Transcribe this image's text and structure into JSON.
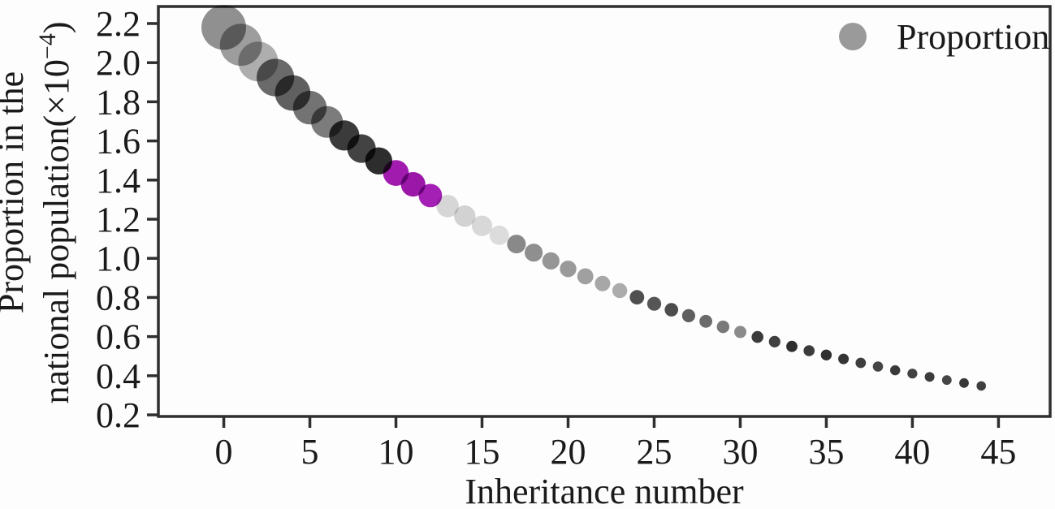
{
  "chart_data": {
    "type": "scatter",
    "title": "",
    "xlabel": "Inheritance number",
    "ylabel_line1": "Proportion in the",
    "ylabel_line2_main": "national population(×10",
    "ylabel_line2_sup": "−4",
    "ylabel_line2_close": ")",
    "ylabel_full": "Proportion in the national population(×10−4)",
    "grid": false,
    "legend": [
      {
        "label": "Proportion",
        "marker_color": "#9a9a9a",
        "position": "upper right"
      }
    ],
    "x_ticks": [
      0,
      5,
      10,
      15,
      20,
      25,
      30,
      35,
      40,
      45
    ],
    "y_ticks": [
      "0.2",
      "0.4",
      "0.6",
      "0.8",
      "1.0",
      "1.2",
      "1.4",
      "1.6",
      "1.8",
      "2.0",
      "2.2"
    ],
    "xlim": [
      -3.8,
      48.0
    ],
    "ylim": [
      0.192,
      2.287
    ],
    "axis_color": "#2f2f2f",
    "text_color": "#1a1a1a",
    "series": [
      {
        "name": "Proportion",
        "x": [
          0,
          1,
          2,
          3,
          4,
          5,
          6,
          7,
          8,
          9,
          10,
          11,
          12,
          13,
          14,
          15,
          16,
          17,
          18,
          19,
          20,
          21,
          22,
          23,
          24,
          25,
          26,
          27,
          28,
          29,
          30,
          31,
          32,
          33,
          34,
          35,
          36,
          37,
          38,
          39,
          40,
          41,
          42,
          43,
          44
        ],
        "y": [
          2.18,
          2.091,
          2.006,
          1.924,
          1.845,
          1.77,
          1.697,
          1.628,
          1.561,
          1.498,
          1.436,
          1.378,
          1.321,
          1.267,
          1.216,
          1.166,
          1.118,
          1.073,
          1.029,
          0.987,
          0.946,
          0.908,
          0.871,
          0.835,
          0.801,
          0.768,
          0.737,
          0.707,
          0.678,
          0.65,
          0.624,
          0.598,
          0.574,
          0.55,
          0.528,
          0.506,
          0.486,
          0.466,
          0.447,
          0.428,
          0.411,
          0.394,
          0.378,
          0.363,
          0.348
        ],
        "marker_radius_px": [
          27.5,
          25.9,
          24.5,
          23.1,
          21.9,
          20.7,
          19.6,
          18.6,
          17.6,
          16.7,
          15.9,
          15.1,
          14.4,
          13.8,
          13.2,
          12.6,
          12.0,
          11.5,
          11.1,
          10.6,
          10.2,
          9.9,
          9.5,
          9.2,
          8.9,
          8.6,
          8.3,
          8.1,
          7.9,
          7.7,
          7.5,
          7.3,
          7.1,
          6.9,
          6.8,
          6.7,
          6.5,
          6.4,
          6.3,
          6.2,
          6.1,
          6.0,
          5.9,
          5.9,
          5.8
        ],
        "marker_color": [
          "#919191",
          "#9e9e9e",
          "#b0b0b0",
          "#6b6b6b",
          "#616161",
          "#747474",
          "#7d7d7d",
          "#3b3b3b",
          "#434343",
          "#2d2d2d",
          "#a21cb0",
          "#9c17a8",
          "#a51fb5",
          "#d8d8d8",
          "#d4d4d4",
          "#dadada",
          "#dedede",
          "#8a8a8a",
          "#909090",
          "#979797",
          "#9b9b9b",
          "#a1a1a1",
          "#a8a8a8",
          "#aeaeae",
          "#4f4f4f",
          "#575757",
          "#4c4c4c",
          "#606060",
          "#6c6c6c",
          "#7a7a7a",
          "#8c8c8c",
          "#3a3a3a",
          "#414141",
          "#2f2f2f",
          "#3b3b3b",
          "#303030",
          "#343434",
          "#3e3e3e",
          "#454545",
          "#3a3a3a",
          "#424242",
          "#3c3c3c",
          "#464646",
          "#383838",
          "#404040"
        ]
      }
    ]
  }
}
